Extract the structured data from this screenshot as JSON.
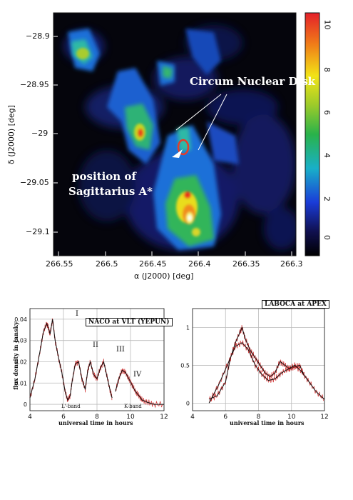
{
  "figure_top": {
    "annotation_cnd": "Circum Nuclear Disk",
    "annotation_sgr_line1": "position of",
    "annotation_sgr_line2": "Sagittarius A*",
    "xlabel": "α (J2000) [deg]",
    "ylabel": "δ (J2000) [deg]",
    "xticks": [
      "266.55",
      "266.5",
      "266.45",
      "266.4",
      "266.35",
      "266.3"
    ],
    "yticks": [
      "−28.9",
      "−28.95",
      "−29",
      "−29.05",
      "−29.1"
    ],
    "colorbar_ticks": [
      "10",
      "8",
      "6",
      "4",
      "2",
      "0"
    ]
  },
  "chart_data": [
    {
      "type": "line",
      "title": "NACO at VLT (YEPUN)",
      "xlabel": "universal time in hours",
      "ylabel": "flux density in Jansky",
      "xlim": [
        4,
        12
      ],
      "ylim": [
        -0.003,
        0.045
      ],
      "xticks": [
        "4",
        "6",
        "8",
        "10",
        "12"
      ],
      "yticks": [
        "0",
        "0.01",
        "0.02",
        "0.03",
        "0.04"
      ],
      "annotations": [
        "I",
        "II",
        "III",
        "IV",
        "L'-band",
        "K-band"
      ],
      "series": [
        {
          "x": [
            4.0,
            4.3,
            4.6,
            4.8,
            5.0,
            5.1,
            5.2,
            5.35,
            5.5,
            5.7,
            5.9,
            6.1,
            6.25,
            6.4,
            6.5,
            6.7,
            6.9,
            7.1,
            7.3,
            7.45,
            7.6,
            7.8,
            8.0,
            8.2,
            8.4,
            8.6,
            8.8,
            8.9
          ],
          "y": [
            0.003,
            0.012,
            0.025,
            0.034,
            0.038,
            0.036,
            0.033,
            0.04,
            0.03,
            0.022,
            0.015,
            0.006,
            0.002,
            0.004,
            0.01,
            0.019,
            0.02,
            0.012,
            0.007,
            0.016,
            0.02,
            0.014,
            0.012,
            0.017,
            0.02,
            0.013,
            0.006,
            0.003
          ]
        },
        {
          "x": [
            9.1,
            9.3,
            9.5,
            9.7,
            9.9,
            10.1,
            10.3,
            10.5,
            10.7,
            11.0,
            11.4,
            12.0
          ],
          "y": [
            0.006,
            0.012,
            0.016,
            0.015,
            0.012,
            0.009,
            0.006,
            0.004,
            0.002,
            0.001,
            0.0,
            0.0
          ]
        }
      ]
    },
    {
      "type": "line",
      "title": "LABOCA at APEX",
      "xlabel": "universal time in hours",
      "xlim": [
        4,
        12
      ],
      "ylim": [
        -0.1,
        1.25
      ],
      "xticks": [
        "4",
        "6",
        "8",
        "10",
        "12"
      ],
      "yticks": [
        "0",
        "0.5",
        "1"
      ],
      "series": [
        {
          "x": [
            5.0,
            5.5,
            6.0,
            6.3,
            6.6,
            6.9,
            7.0,
            7.2,
            7.5,
            7.8,
            8.1,
            8.4,
            8.7,
            9.0,
            9.3,
            9.6,
            9.9,
            10.2,
            10.5,
            10.8
          ],
          "y": [
            0.05,
            0.1,
            0.28,
            0.6,
            0.8,
            0.95,
            1.0,
            0.85,
            0.7,
            0.6,
            0.5,
            0.4,
            0.35,
            0.4,
            0.55,
            0.5,
            0.45,
            0.48,
            0.5,
            0.35
          ]
        },
        {
          "x": [
            5.0,
            5.6,
            6.2,
            6.6,
            7.0,
            7.4,
            7.8,
            8.2,
            8.6,
            9.0,
            9.4,
            9.8,
            10.2,
            10.6,
            11.0,
            11.5,
            12.0
          ],
          "y": [
            0.0,
            0.25,
            0.55,
            0.75,
            0.8,
            0.7,
            0.5,
            0.38,
            0.3,
            0.32,
            0.4,
            0.45,
            0.5,
            0.42,
            0.3,
            0.15,
            0.05
          ]
        }
      ]
    }
  ]
}
